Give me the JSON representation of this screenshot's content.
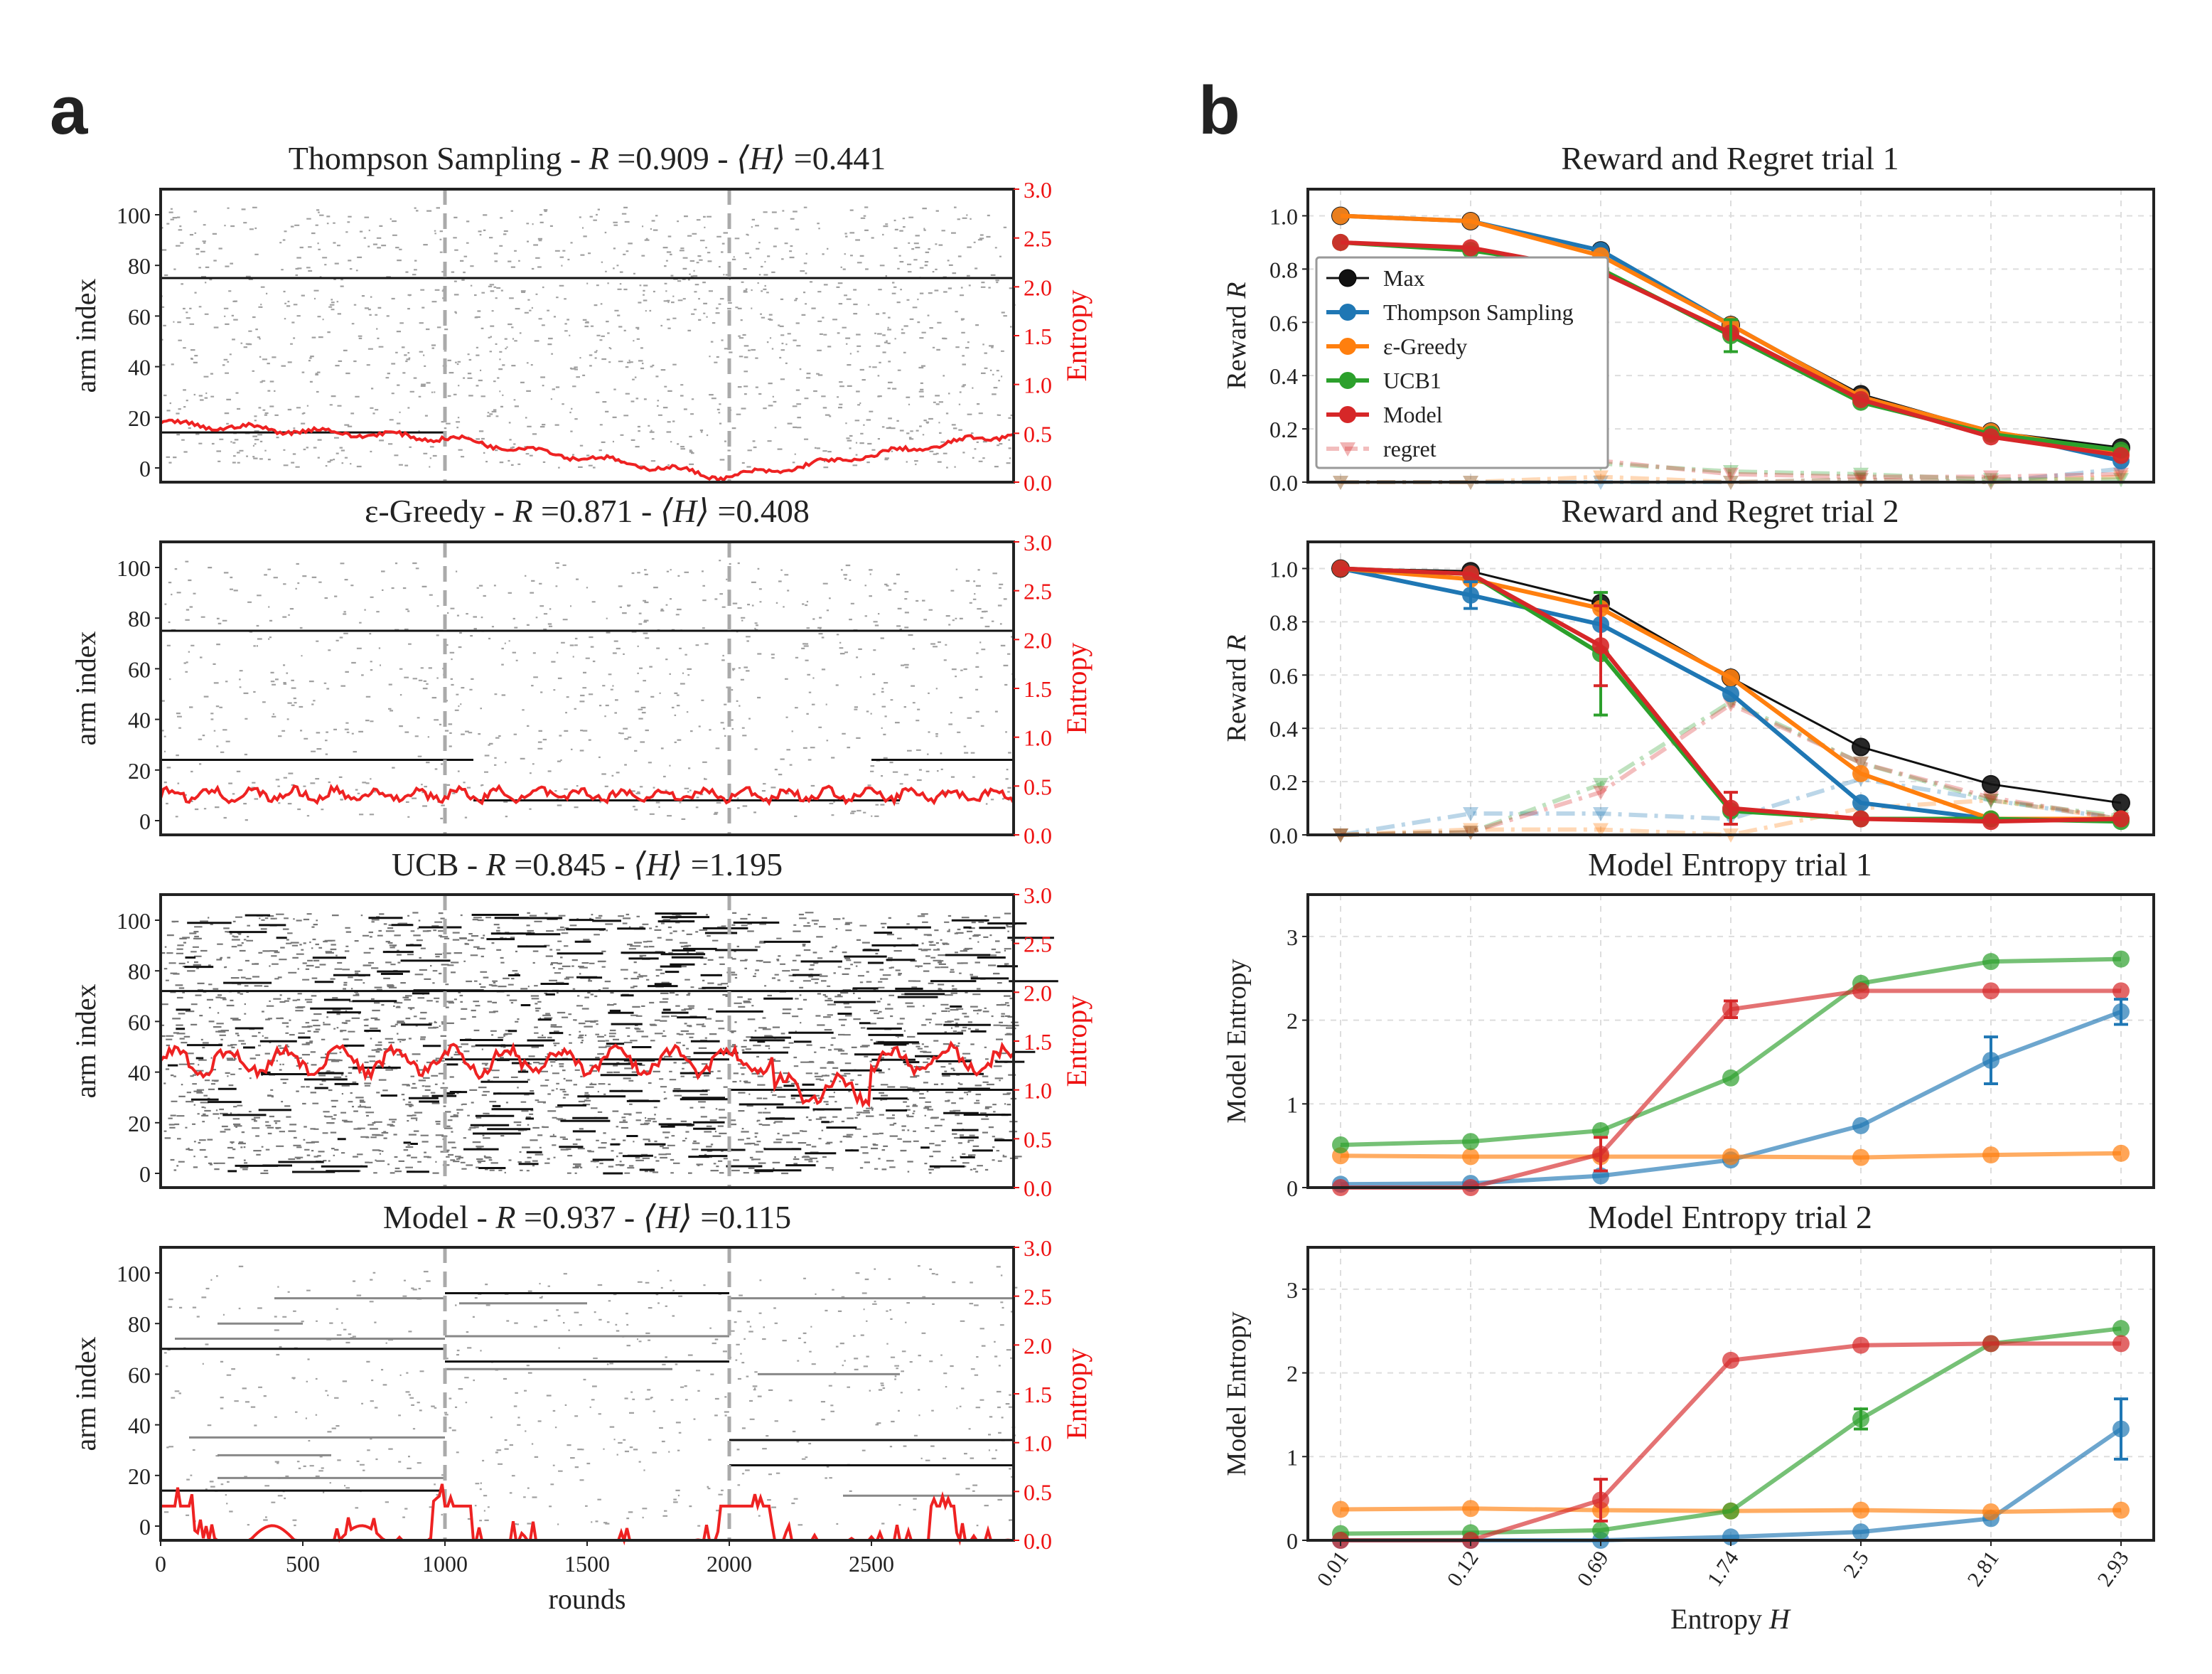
{
  "panel_labels": {
    "a": "a",
    "b": "b"
  },
  "colors": {
    "thompson": "#1f77b4",
    "egreedy": "#ff7f0e",
    "ucb": "#2ca02c",
    "model": "#d62728",
    "max": "#111111",
    "entropy_line": "#ee2222",
    "axis_red": "#ee1111"
  },
  "left": {
    "xlabel": "rounds",
    "ylabel": "arm index",
    "ylabel_right": "Entropy",
    "x_ticks": [
      "0",
      "500",
      "1000",
      "1500",
      "2000",
      "2500"
    ],
    "y_ticks": [
      "0",
      "20",
      "40",
      "60",
      "80",
      "100"
    ],
    "y2_ticks": [
      "0.0",
      "0.5",
      "1.0",
      "1.5",
      "2.0",
      "2.5",
      "3.0"
    ],
    "panels": [
      {
        "title_name": "Thompson Sampling - ",
        "title_r": "R",
        "title_rval": " =0.909 - ",
        "title_h": "⟨H⟩",
        "title_hval": " =0.441",
        "entropy_level": 0.44,
        "density": 0.55
      },
      {
        "title_name": "ε-Greedy - ",
        "title_r": "R",
        "title_rval": " =0.871 - ",
        "title_h": "⟨H⟩",
        "title_hval": " =0.408",
        "entropy_level": 0.41,
        "density": 0.35
      },
      {
        "title_name": "UCB - ",
        "title_r": "R",
        "title_rval": " =0.845 - ",
        "title_h": "⟨H⟩",
        "title_hval": " =1.195",
        "entropy_level": 1.2,
        "density": 1.0
      },
      {
        "title_name": "Model - ",
        "title_r": "R",
        "title_rval": " =0.937 - ",
        "title_h": "⟨H⟩",
        "title_hval": " =0.115",
        "entropy_level": 0.12,
        "density": 0.25
      }
    ]
  },
  "chart_data": [
    {
      "type": "line",
      "title": "Reward and Regret trial 1",
      "ylabel": "Reward R",
      "x": [
        "0.01",
        "0.12",
        "0.69",
        "1.74",
        "2.5",
        "2.81",
        "2.93"
      ],
      "ylim": [
        0,
        1.1
      ],
      "y_ticks": [
        "0.0",
        "0.2",
        "0.4",
        "0.6",
        "0.8",
        "1.0"
      ],
      "legend": [
        "Max",
        "Thompson Sampling",
        "ε-Greedy",
        "UCB1",
        "Model",
        "regret"
      ],
      "series": [
        {
          "name": "Max",
          "values": [
            1.0,
            0.98,
            0.87,
            0.59,
            0.33,
            0.19,
            0.13
          ]
        },
        {
          "name": "Thompson Sampling",
          "values": [
            1.0,
            0.98,
            0.87,
            0.59,
            0.32,
            0.19,
            0.08
          ]
        },
        {
          "name": "ε-Greedy",
          "values": [
            1.0,
            0.98,
            0.85,
            0.59,
            0.32,
            0.19,
            0.11
          ]
        },
        {
          "name": "UCB1",
          "values": [
            0.9,
            0.87,
            0.8,
            0.55,
            0.3,
            0.18,
            0.12
          ]
        },
        {
          "name": "Model",
          "values": [
            0.9,
            0.88,
            0.79,
            0.56,
            0.31,
            0.17,
            0.1
          ]
        }
      ],
      "regret": [
        {
          "name": "Thompson Sampling",
          "values": [
            0.0,
            0.0,
            0.0,
            0.0,
            0.01,
            0.0,
            0.05
          ]
        },
        {
          "name": "ε-Greedy",
          "values": [
            0.0,
            0.0,
            0.02,
            0.0,
            0.01,
            0.0,
            0.02
          ]
        },
        {
          "name": "UCB1",
          "values": [
            0.1,
            0.11,
            0.07,
            0.04,
            0.03,
            0.01,
            0.01
          ]
        },
        {
          "name": "Model",
          "values": [
            0.1,
            0.1,
            0.08,
            0.03,
            0.02,
            0.02,
            0.03
          ]
        }
      ]
    },
    {
      "type": "line",
      "title": "Reward and Regret trial 2",
      "ylabel": "Reward R",
      "x": [
        "0.01",
        "0.12",
        "0.69",
        "1.74",
        "2.5",
        "2.81",
        "2.93"
      ],
      "ylim": [
        0,
        1.1
      ],
      "y_ticks": [
        "0.0",
        "0.2",
        "0.4",
        "0.6",
        "0.8",
        "1.0"
      ],
      "series": [
        {
          "name": "Max",
          "values": [
            1.0,
            0.99,
            0.87,
            0.59,
            0.33,
            0.19,
            0.12
          ]
        },
        {
          "name": "Thompson Sampling",
          "values": [
            1.0,
            0.9,
            0.79,
            0.53,
            0.12,
            0.06,
            0.06
          ]
        },
        {
          "name": "ε-Greedy",
          "values": [
            1.0,
            0.96,
            0.85,
            0.59,
            0.23,
            0.06,
            0.06
          ]
        },
        {
          "name": "UCB1",
          "values": [
            1.0,
            0.98,
            0.68,
            0.09,
            0.06,
            0.06,
            0.05
          ]
        },
        {
          "name": "Model",
          "values": [
            1.0,
            0.98,
            0.71,
            0.1,
            0.06,
            0.05,
            0.06
          ]
        }
      ],
      "regret": [
        {
          "name": "Thompson Sampling",
          "values": [
            0.0,
            0.08,
            0.08,
            0.06,
            0.21,
            0.13,
            0.06
          ]
        },
        {
          "name": "ε-Greedy",
          "values": [
            0.0,
            0.02,
            0.02,
            0.0,
            0.1,
            0.13,
            0.06
          ]
        },
        {
          "name": "UCB1",
          "values": [
            0.0,
            0.01,
            0.19,
            0.5,
            0.27,
            0.13,
            0.07
          ]
        },
        {
          "name": "Model",
          "values": [
            0.0,
            0.01,
            0.16,
            0.49,
            0.27,
            0.14,
            0.06
          ]
        }
      ]
    },
    {
      "type": "line",
      "title": "Model Entropy trial 1",
      "ylabel": "Model Entropy",
      "x": [
        "0.01",
        "0.12",
        "0.69",
        "1.74",
        "2.5",
        "2.81",
        "2.93"
      ],
      "ylim": [
        0,
        3.5
      ],
      "y_ticks": [
        "0",
        "1",
        "2",
        "3"
      ],
      "series": [
        {
          "name": "Thompson Sampling",
          "values": [
            0.04,
            0.05,
            0.14,
            0.33,
            0.74,
            1.52,
            2.1
          ]
        },
        {
          "name": "ε-Greedy",
          "values": [
            0.38,
            0.37,
            0.37,
            0.37,
            0.36,
            0.39,
            0.41
          ]
        },
        {
          "name": "UCB1",
          "values": [
            0.51,
            0.55,
            0.68,
            1.31,
            2.44,
            2.7,
            2.73
          ]
        },
        {
          "name": "Model",
          "values": [
            0.0,
            0.0,
            0.4,
            2.13,
            2.35,
            2.35,
            2.35
          ]
        }
      ]
    },
    {
      "type": "line",
      "title": "Model Entropy trial 2",
      "ylabel": "Model Entropy",
      "xlabel": "Entropy H",
      "x": [
        "0.01",
        "0.12",
        "0.69",
        "1.74",
        "2.5",
        "2.81",
        "2.93"
      ],
      "ylim": [
        0,
        3.5
      ],
      "y_ticks": [
        "0",
        "1",
        "2",
        "3"
      ],
      "series": [
        {
          "name": "Thompson Sampling",
          "values": [
            0.0,
            0.0,
            0.0,
            0.04,
            0.1,
            0.26,
            1.33
          ]
        },
        {
          "name": "ε-Greedy",
          "values": [
            0.37,
            0.38,
            0.36,
            0.35,
            0.36,
            0.34,
            0.36
          ]
        },
        {
          "name": "UCB1",
          "values": [
            0.08,
            0.09,
            0.12,
            0.35,
            1.45,
            2.35,
            2.53
          ]
        },
        {
          "name": "Model",
          "values": [
            0.0,
            0.0,
            0.48,
            2.15,
            2.33,
            2.35,
            2.35
          ]
        }
      ]
    }
  ]
}
